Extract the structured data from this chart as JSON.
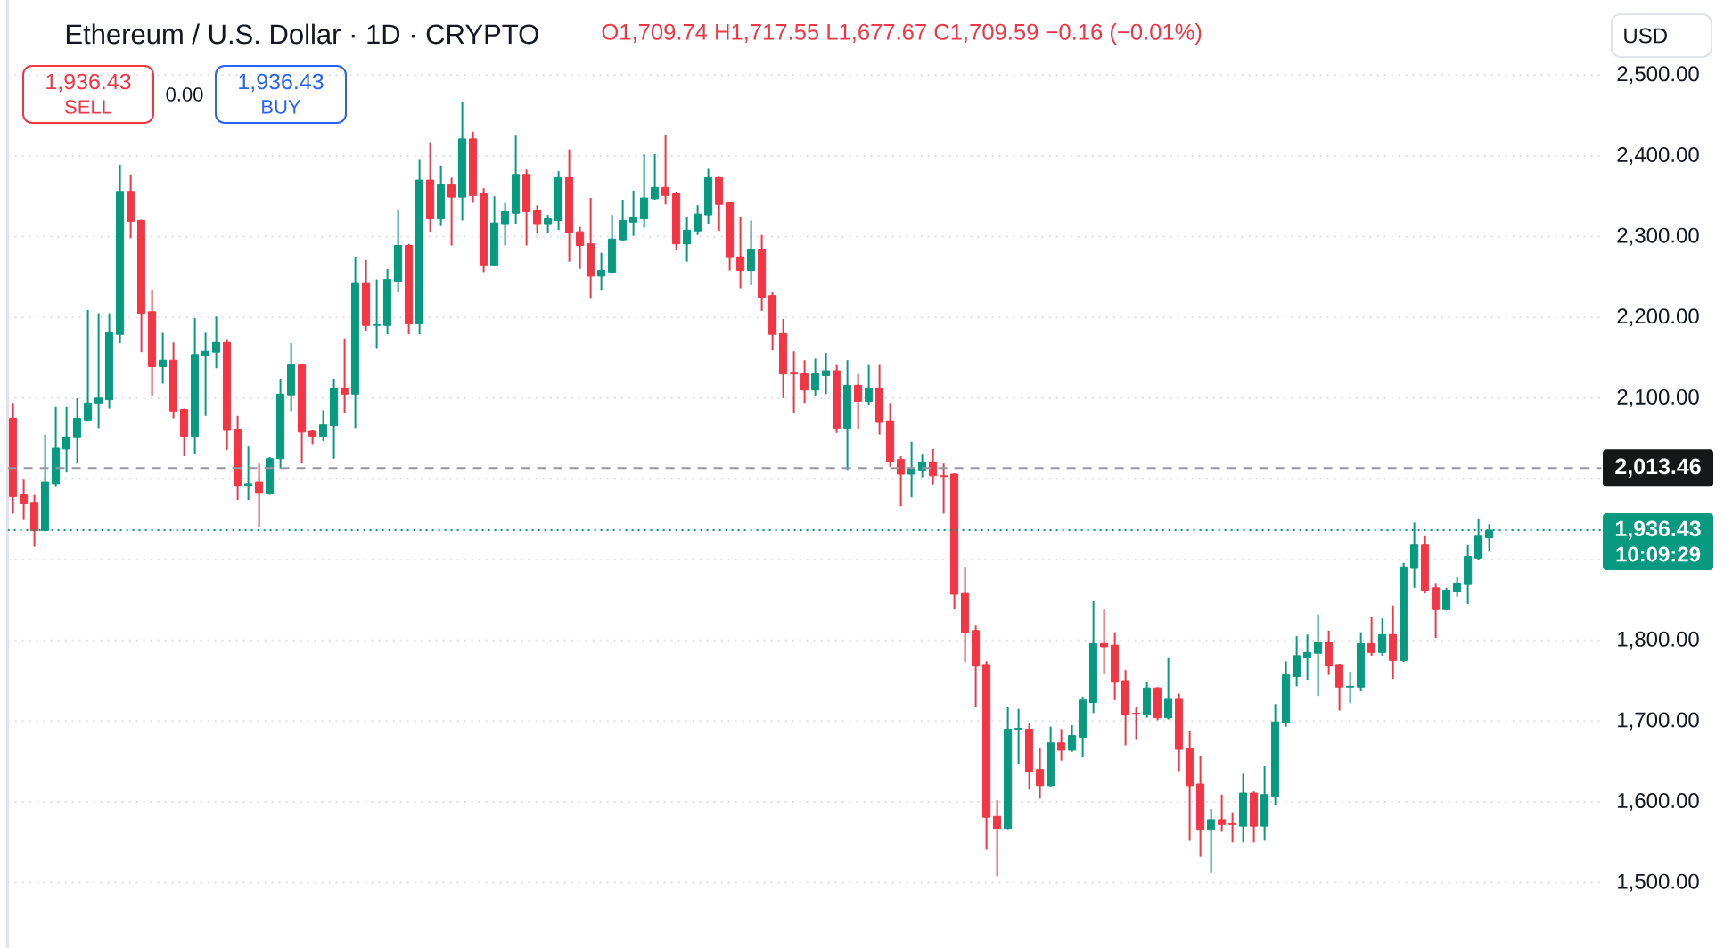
{
  "chart_data": {
    "type": "candlestick",
    "title": "Ethereum / U.S. Dollar · 1D · CRYPTO",
    "categories": [
      null,
      null,
      null,
      null,
      null,
      null,
      null,
      null,
      null,
      null,
      null,
      null,
      null,
      null,
      null,
      null,
      null,
      null,
      null,
      null,
      null,
      null,
      null,
      null,
      null,
      null,
      null,
      null,
      null,
      null,
      null,
      null,
      null,
      null,
      null,
      null,
      null,
      null,
      null,
      null,
      null,
      null,
      null,
      null,
      null,
      null,
      null,
      null,
      null,
      null,
      null,
      null,
      null,
      null,
      null,
      null,
      null,
      null,
      null,
      null,
      null,
      null,
      null,
      null,
      null,
      null,
      null,
      null,
      null,
      null,
      null,
      null,
      null,
      null,
      null,
      null,
      null,
      null,
      null,
      null,
      null,
      null,
      null,
      null,
      null,
      null,
      null,
      null,
      null,
      null,
      null,
      null,
      null,
      null,
      null,
      null,
      null,
      null,
      null,
      null,
      null,
      null,
      null,
      null,
      null,
      null,
      null,
      null,
      null,
      null,
      null,
      null,
      null,
      null,
      null,
      null,
      null,
      null,
      null,
      null,
      null,
      null,
      null,
      null,
      null,
      null,
      null,
      null,
      null,
      null,
      null,
      null,
      null,
      null,
      null,
      null,
      null,
      null,
      null,
      null,
      null,
      null,
      null,
      null,
      null,
      null,
      null,
      null,
      null
    ],
    "ohlc": [
      [
        2075,
        2094,
        1957,
        1978
      ],
      [
        1980,
        1999,
        1949,
        1969
      ],
      [
        1971,
        1980,
        1916,
        1936
      ],
      [
        1936,
        2055,
        1935,
        1996
      ],
      [
        1994,
        2089,
        1990,
        2038
      ],
      [
        2037,
        2089,
        2008,
        2052
      ],
      [
        2051,
        2100,
        2019,
        2075
      ],
      [
        2073,
        2209,
        2071,
        2094
      ],
      [
        2094,
        2205,
        2063,
        2100
      ],
      [
        2098,
        2205,
        2087,
        2181
      ],
      [
        2179,
        2389,
        2168,
        2356
      ],
      [
        2356,
        2377,
        2298,
        2319
      ],
      [
        2320,
        2321,
        2157,
        2205
      ],
      [
        2207,
        2234,
        2102,
        2139
      ],
      [
        2139,
        2181,
        2118,
        2147
      ],
      [
        2147,
        2169,
        2075,
        2084
      ],
      [
        2086,
        2087,
        2028,
        2053
      ],
      [
        2053,
        2199,
        2031,
        2154
      ],
      [
        2153,
        2181,
        2078,
        2158
      ],
      [
        2157,
        2201,
        2137,
        2169
      ],
      [
        2169,
        2172,
        2036,
        2060
      ],
      [
        2061,
        2078,
        1974,
        1991
      ],
      [
        1991,
        2040,
        1974,
        1994
      ],
      [
        1996,
        2019,
        1940,
        1983
      ],
      [
        1982,
        2027,
        1980,
        2025
      ],
      [
        2025,
        2124,
        2013,
        2105
      ],
      [
        2104,
        2168,
        2084,
        2141
      ],
      [
        2141,
        2142,
        2019,
        2058
      ],
      [
        2059,
        2060,
        2043,
        2053
      ],
      [
        2053,
        2085,
        2047,
        2067
      ],
      [
        2066,
        2124,
        2025,
        2112
      ],
      [
        2112,
        2174,
        2082,
        2105
      ],
      [
        2105,
        2275,
        2063,
        2242
      ],
      [
        2242,
        2271,
        2183,
        2190
      ],
      [
        2190,
        2247,
        2161,
        2191
      ],
      [
        2190,
        2260,
        2179,
        2247
      ],
      [
        2245,
        2333,
        2231,
        2289
      ],
      [
        2289,
        2291,
        2179,
        2192
      ],
      [
        2192,
        2395,
        2179,
        2370
      ],
      [
        2370,
        2417,
        2306,
        2322
      ],
      [
        2322,
        2388,
        2313,
        2364
      ],
      [
        2364,
        2373,
        2289,
        2349
      ],
      [
        2349,
        2467,
        2320,
        2421
      ],
      [
        2421,
        2430,
        2342,
        2351
      ],
      [
        2353,
        2360,
        2256,
        2265
      ],
      [
        2265,
        2350,
        2264,
        2317
      ],
      [
        2316,
        2342,
        2289,
        2331
      ],
      [
        2329,
        2425,
        2316,
        2377
      ],
      [
        2377,
        2383,
        2289,
        2331
      ],
      [
        2332,
        2339,
        2305,
        2316
      ],
      [
        2316,
        2327,
        2305,
        2322
      ],
      [
        2320,
        2381,
        2308,
        2373
      ],
      [
        2373,
        2408,
        2269,
        2305
      ],
      [
        2306,
        2312,
        2260,
        2289
      ],
      [
        2291,
        2348,
        2223,
        2251
      ],
      [
        2251,
        2280,
        2233,
        2258
      ],
      [
        2256,
        2327,
        2255,
        2297
      ],
      [
        2296,
        2345,
        2295,
        2320
      ],
      [
        2318,
        2357,
        2301,
        2324
      ],
      [
        2322,
        2402,
        2311,
        2348
      ],
      [
        2347,
        2402,
        2345,
        2361
      ],
      [
        2361,
        2426,
        2340,
        2351
      ],
      [
        2353,
        2355,
        2283,
        2291
      ],
      [
        2291,
        2324,
        2269,
        2308
      ],
      [
        2307,
        2339,
        2302,
        2328
      ],
      [
        2327,
        2384,
        2316,
        2373
      ],
      [
        2373,
        2374,
        2307,
        2340
      ],
      [
        2342,
        2342,
        2258,
        2274
      ],
      [
        2275,
        2324,
        2236,
        2258
      ],
      [
        2258,
        2320,
        2240,
        2284
      ],
      [
        2284,
        2302,
        2208,
        2225
      ],
      [
        2227,
        2231,
        2159,
        2179
      ],
      [
        2180,
        2198,
        2100,
        2130
      ],
      [
        2131,
        2158,
        2082,
        2130
      ],
      [
        2130,
        2147,
        2094,
        2110
      ],
      [
        2110,
        2149,
        2103,
        2130
      ],
      [
        2128,
        2156,
        2105,
        2134
      ],
      [
        2134,
        2141,
        2057,
        2063
      ],
      [
        2063,
        2147,
        2010,
        2116
      ],
      [
        2116,
        2130,
        2061,
        2096
      ],
      [
        2096,
        2141,
        2092,
        2112
      ],
      [
        2112,
        2141,
        2055,
        2070
      ],
      [
        2072,
        2094,
        2015,
        2021
      ],
      [
        2024,
        2028,
        1966,
        2006
      ],
      [
        2006,
        2046,
        1977,
        2013
      ],
      [
        2010,
        2030,
        2002,
        2021
      ],
      [
        2021,
        2037,
        1993,
        2004
      ],
      [
        2004,
        2019,
        1957,
        2003
      ],
      [
        2006,
        2007,
        1839,
        1857
      ],
      [
        1858,
        1891,
        1773,
        1810
      ],
      [
        1812,
        1818,
        1718,
        1768
      ],
      [
        1770,
        1774,
        1541,
        1581
      ],
      [
        1582,
        1602,
        1508,
        1567
      ],
      [
        1567,
        1717,
        1565,
        1690
      ],
      [
        1690,
        1715,
        1647,
        1691
      ],
      [
        1690,
        1697,
        1615,
        1637
      ],
      [
        1640,
        1666,
        1604,
        1620
      ],
      [
        1620,
        1693,
        1619,
        1673
      ],
      [
        1673,
        1690,
        1651,
        1664
      ],
      [
        1664,
        1695,
        1662,
        1682
      ],
      [
        1680,
        1730,
        1655,
        1726
      ],
      [
        1723,
        1849,
        1710,
        1796
      ],
      [
        1796,
        1838,
        1759,
        1792
      ],
      [
        1794,
        1810,
        1726,
        1748
      ],
      [
        1750,
        1763,
        1670,
        1708
      ],
      [
        1709.74,
        1717.55,
        1677.67,
        1709.59
      ],
      [
        1708,
        1748,
        1704,
        1741
      ],
      [
        1741,
        1742,
        1701,
        1704
      ],
      [
        1704,
        1779,
        1702,
        1728
      ],
      [
        1728,
        1734,
        1638,
        1665
      ],
      [
        1666,
        1688,
        1552,
        1620
      ],
      [
        1622,
        1657,
        1532,
        1565
      ],
      [
        1565,
        1591,
        1512,
        1578
      ],
      [
        1578,
        1609,
        1563,
        1572
      ],
      [
        1573,
        1587,
        1550,
        1572
      ],
      [
        1570,
        1635,
        1550,
        1611
      ],
      [
        1611,
        1613,
        1550,
        1570
      ],
      [
        1570,
        1644,
        1552,
        1609
      ],
      [
        1607,
        1721,
        1596,
        1699
      ],
      [
        1698,
        1774,
        1693,
        1757
      ],
      [
        1755,
        1805,
        1743,
        1781
      ],
      [
        1779,
        1807,
        1751,
        1785
      ],
      [
        1784,
        1832,
        1731,
        1798
      ],
      [
        1798,
        1812,
        1757,
        1768
      ],
      [
        1770,
        1771,
        1713,
        1742
      ],
      [
        1742,
        1761,
        1722,
        1743
      ],
      [
        1742,
        1810,
        1737,
        1796
      ],
      [
        1796,
        1829,
        1781,
        1785
      ],
      [
        1785,
        1827,
        1781,
        1807
      ],
      [
        1807,
        1843,
        1752,
        1775
      ],
      [
        1775,
        1896,
        1773,
        1891
      ],
      [
        1889,
        1946,
        1865,
        1918
      ],
      [
        1918,
        1929,
        1858,
        1862
      ],
      [
        1865,
        1871,
        1803,
        1838
      ],
      [
        1838,
        1865,
        1837,
        1862
      ],
      [
        1860,
        1878,
        1854,
        1871
      ],
      [
        1869,
        1918,
        1845,
        1904
      ],
      [
        1902,
        1951,
        1900,
        1929
      ],
      [
        1927,
        1944,
        1911,
        1936.43
      ],
      null,
      null,
      null,
      null,
      null,
      null,
      null,
      null,
      null,
      null
    ],
    "colors": [
      "#f23645",
      "#f23645",
      "#f23645",
      "#089981",
      "#089981",
      "#089981",
      "#089981",
      "#089981",
      "#089981",
      "#089981",
      "#089981",
      "#f23645",
      "#f23645",
      "#f23645",
      "#089981",
      "#f23645",
      "#f23645",
      "#089981",
      "#089981",
      "#089981",
      "#f23645",
      "#f23645",
      "#089981",
      "#f23645",
      "#089981",
      "#089981",
      "#089981",
      "#f23645",
      "#f23645",
      "#089981",
      "#089981",
      "#f23645",
      "#089981",
      "#f23645",
      "#089981",
      "#089981",
      "#089981",
      "#f23645",
      "#089981",
      "#f23645",
      "#089981",
      "#f23645",
      "#089981",
      "#f23645",
      "#f23645",
      "#089981",
      "#089981",
      "#089981",
      "#f23645",
      "#f23645",
      "#089981",
      "#089981",
      "#f23645",
      "#f23645",
      "#f23645",
      "#089981",
      "#089981",
      "#089981",
      "#089981",
      "#089981",
      "#089981",
      "#f23645",
      "#f23645",
      "#089981",
      "#089981",
      "#089981",
      "#f23645",
      "#f23645",
      "#f23645",
      "#089981",
      "#f23645",
      "#f23645",
      "#f23645",
      "#f23645",
      "#f23645",
      "#089981",
      "#089981",
      "#f23645",
      "#089981",
      "#f23645",
      "#089981",
      "#f23645",
      "#f23645",
      "#f23645",
      "#089981",
      "#089981",
      "#f23645",
      "#f23645",
      "#f23645",
      "#f23645",
      "#f23645",
      "#f23645",
      "#f23645",
      "#089981",
      "#089981",
      "#f23645",
      "#f23645",
      "#089981",
      "#f23645",
      "#089981",
      "#089981",
      "#089981",
      "#f23645",
      "#f23645",
      "#f23645",
      "#f23645",
      "#089981",
      "#f23645",
      "#089981",
      "#f23645",
      "#f23645",
      "#f23645",
      "#089981",
      "#f23645",
      "#f23645",
      "#089981",
      "#f23645",
      "#089981",
      "#089981",
      "#089981",
      "#089981",
      "#089981",
      "#089981",
      "#f23645",
      "#f23645",
      "#089981",
      "#089981",
      "#f23645",
      "#089981",
      "#f23645",
      "#089981",
      "#089981",
      "#f23645",
      "#f23645",
      "#089981",
      "#089981",
      "#089981",
      "#089981",
      "#089981",
      null,
      null,
      null,
      null,
      null,
      null,
      null,
      null,
      null,
      null
    ],
    "ylim": [
      1419,
      2593
    ],
    "yticks": [
      {
        "value": 1500,
        "label": "1,500.00"
      },
      {
        "value": 1600,
        "label": "1,600.00"
      },
      {
        "value": 1700,
        "label": "1,700.00"
      },
      {
        "value": 1800,
        "label": "1,800.00"
      },
      {
        "value": 1900,
        "label": null
      },
      {
        "value": 2000,
        "label": null
      },
      {
        "value": 2100,
        "label": "2,100.00"
      },
      {
        "value": 2200,
        "label": "2,200.00"
      },
      {
        "value": 2300,
        "label": "2,300.00"
      },
      {
        "value": 2400,
        "label": "2,400.00"
      },
      {
        "value": 2500,
        "label": "2,500.00"
      }
    ],
    "grid": "y",
    "tick_labels": "y",
    "ref_lines": [
      {
        "axis": "y",
        "value": 2013.46,
        "label": "2,013.46",
        "color": "#9598a1",
        "line_style": "dashed"
      },
      {
        "axis": "y",
        "value": 1936.43,
        "label": "1,936.43",
        "color": "#089981",
        "line_style": "dotted"
      }
    ],
    "annotations": [
      "O1,709.74 H1,717.55 L1,677.67 C1,709.59 −0.16 (−0.01%)",
      "1,936.43",
      "SELL",
      "0.00",
      "1,936.43",
      "BUY",
      "USD",
      "10:09:29"
    ]
  }
}
